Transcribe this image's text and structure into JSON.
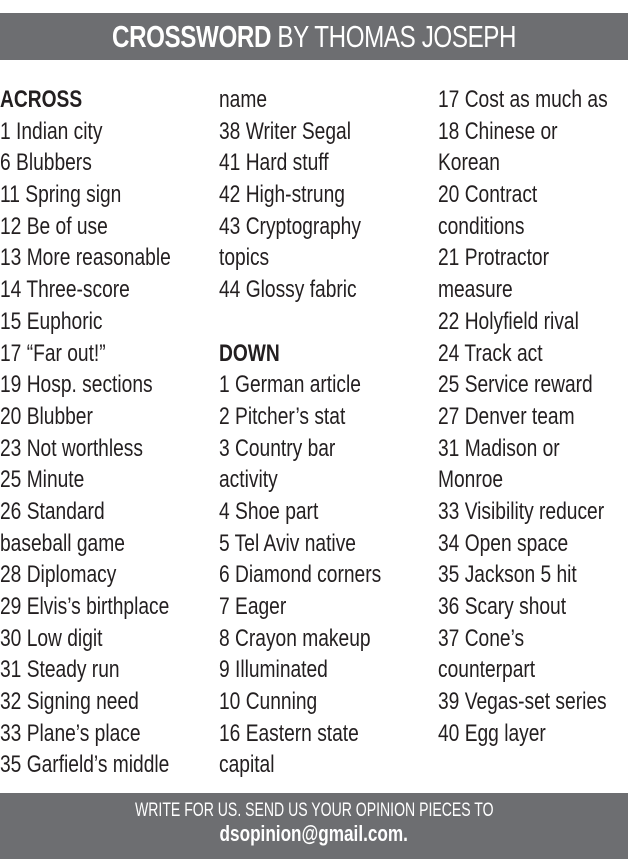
{
  "header": {
    "title_bold": "CROSSWORD",
    "title_rest": " BY THOMAS JOSEPH"
  },
  "columns": [
    {
      "lines": [
        {
          "text": "ACROSS",
          "heading": true
        },
        {
          "text": "1 Indian city"
        },
        {
          "text": "6 Blubbers"
        },
        {
          "text": "11 Spring sign"
        },
        {
          "text": "12 Be of use"
        },
        {
          "text": "13 More reasonable"
        },
        {
          "text": "14 Three-score"
        },
        {
          "text": "15 Euphoric"
        },
        {
          "text": "17 “Far out!”"
        },
        {
          "text": "19 Hosp. sections"
        },
        {
          "text": "20 Blubber"
        },
        {
          "text": "23 Not worthless"
        },
        {
          "text": "25 Minute"
        },
        {
          "text": "26 Standard"
        },
        {
          "text": "baseball game"
        },
        {
          "text": "28 Diplomacy"
        },
        {
          "text": "29 Elvis’s birthplace"
        },
        {
          "text": "30 Low digit"
        },
        {
          "text": "31 Steady run"
        },
        {
          "text": "32 Signing need"
        },
        {
          "text": "33 Plane’s place"
        },
        {
          "text": "35 Garfield’s middle"
        }
      ]
    },
    {
      "lines": [
        {
          "text": "name"
        },
        {
          "text": "38 Writer Segal"
        },
        {
          "text": "41 Hard stuff"
        },
        {
          "text": "42 High-strung"
        },
        {
          "text": "43 Cryptography"
        },
        {
          "text": "topics"
        },
        {
          "text": "44 Glossy fabric"
        },
        {
          "text": ""
        },
        {
          "text": "DOWN",
          "heading": true
        },
        {
          "text": "1 German article"
        },
        {
          "text": "2 Pitcher’s stat"
        },
        {
          "text": "3 Country bar"
        },
        {
          "text": "activity"
        },
        {
          "text": "4 Shoe part"
        },
        {
          "text": "5 Tel Aviv native"
        },
        {
          "text": "6 Diamond corners"
        },
        {
          "text": "7 Eager"
        },
        {
          "text": "8 Crayon makeup"
        },
        {
          "text": "9 Illuminated"
        },
        {
          "text": "10 Cunning"
        },
        {
          "text": "16 Eastern state"
        },
        {
          "text": "capital"
        }
      ]
    },
    {
      "lines": [
        {
          "text": "17 Cost as much as"
        },
        {
          "text": "18 Chinese or"
        },
        {
          "text": "Korean"
        },
        {
          "text": "20 Contract"
        },
        {
          "text": "conditions"
        },
        {
          "text": "21 Protractor"
        },
        {
          "text": "measure"
        },
        {
          "text": "22 Holyfield rival"
        },
        {
          "text": "24 Track act"
        },
        {
          "text": "25 Service reward"
        },
        {
          "text": "27 Denver team"
        },
        {
          "text": "31 Madison or"
        },
        {
          "text": "Monroe"
        },
        {
          "text": "33 Visibility reducer"
        },
        {
          "text": "34 Open space"
        },
        {
          "text": "35 Jackson 5 hit"
        },
        {
          "text": "36 Scary shout"
        },
        {
          "text": "37 Cone’s"
        },
        {
          "text": "counterpart"
        },
        {
          "text": "39 Vegas-set series"
        },
        {
          "text": "40 Egg layer"
        }
      ]
    }
  ],
  "footer": {
    "line1": "WRITE FOR US. SEND US YOUR OPINION PIECES TO",
    "email": "dsopinion@gmail.com."
  },
  "colors": {
    "bar": "#6d6e71",
    "text": "#231f20"
  }
}
